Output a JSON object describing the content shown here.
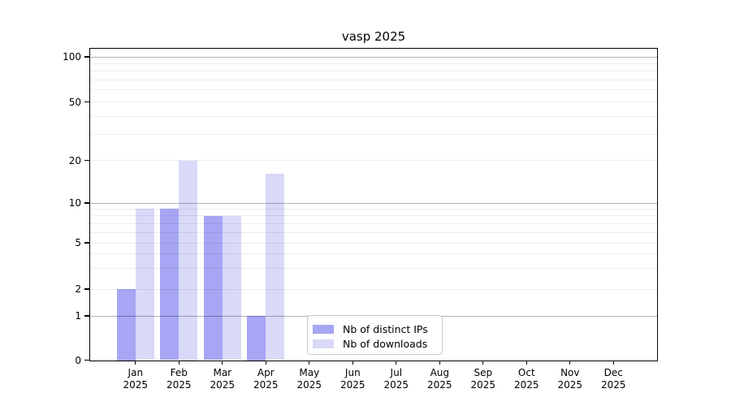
{
  "chart_data": {
    "type": "bar",
    "title": "vasp 2025",
    "categories": [
      "Jan",
      "Feb",
      "Mar",
      "Apr",
      "May",
      "Jun",
      "Jul",
      "Aug",
      "Sep",
      "Oct",
      "Nov",
      "Dec"
    ],
    "category_year": "2025",
    "series": [
      {
        "name": "Nb of distinct IPs",
        "color": "#a6a6f4",
        "values": [
          2,
          9,
          8,
          1,
          0,
          0,
          0,
          0,
          0,
          0,
          0,
          0
        ]
      },
      {
        "name": "Nb of downloads",
        "color": "#d9d9f8",
        "values": [
          9,
          20,
          8,
          16,
          0,
          0,
          0,
          0,
          0,
          0,
          0,
          0
        ]
      }
    ],
    "xlabel": "",
    "ylabel": "",
    "y_ticks": [
      0,
      1,
      2,
      5,
      10,
      20,
      50,
      100
    ],
    "y_minor_gridlines": [
      2,
      3,
      4,
      5,
      6,
      7,
      8,
      9,
      20,
      30,
      40,
      50,
      60,
      70,
      80,
      90
    ],
    "y_major_gridlines": [
      1,
      10,
      100
    ],
    "y_scale": "symlog",
    "ylim": [
      0,
      100
    ],
    "grid": true,
    "legend": {
      "entries": [
        "Nb of distinct IPs",
        "Nb of downloads"
      ],
      "position": "lower center-left"
    }
  },
  "colors": {
    "grid_minor": "#ececec",
    "grid_major": "#adadad",
    "frame": "#000000",
    "background": "#ffffff"
  }
}
